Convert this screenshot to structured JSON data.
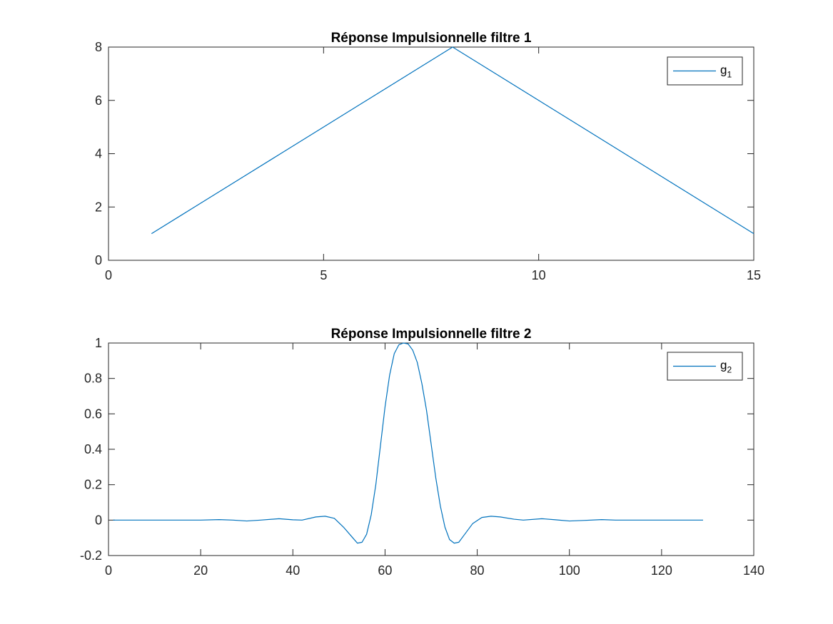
{
  "figure": {
    "background": "#ffffff",
    "line_color": "#0072bd",
    "axis_color": "#262626"
  },
  "chart_data": [
    {
      "type": "line",
      "title": "Réponse Impulsionnelle filtre 1",
      "xlabel": "",
      "ylabel": "",
      "xlim": [
        0,
        15
      ],
      "ylim": [
        0,
        8
      ],
      "xticks": [
        0,
        5,
        10,
        15
      ],
      "yticks": [
        0,
        2,
        4,
        6,
        8
      ],
      "grid": false,
      "legend_position": "top-right",
      "series": [
        {
          "name": "g_1",
          "legend_base": "g",
          "legend_sub": "1",
          "x": [
            1,
            2,
            3,
            4,
            5,
            6,
            7,
            8,
            9,
            10,
            11,
            12,
            13,
            14,
            15
          ],
          "y": [
            1,
            2,
            3,
            4,
            5,
            6,
            7,
            8,
            7,
            6,
            5,
            4,
            3,
            2,
            1
          ]
        }
      ]
    },
    {
      "type": "line",
      "title": "Réponse Impulsionnelle filtre 2",
      "xlabel": "",
      "ylabel": "",
      "xlim": [
        0,
        140
      ],
      "ylim": [
        -0.2,
        1
      ],
      "xticks": [
        0,
        20,
        40,
        60,
        80,
        100,
        120,
        140
      ],
      "yticks": [
        -0.2,
        0,
        0.2,
        0.4,
        0.6,
        0.8,
        1
      ],
      "grid": false,
      "legend_position": "top-right",
      "series": [
        {
          "name": "g_2",
          "legend_base": "g",
          "legend_sub": "2",
          "x": [
            1,
            5,
            10,
            15,
            20,
            24,
            27,
            30,
            33,
            37,
            40,
            42,
            45,
            47,
            49,
            51,
            53,
            54,
            55,
            56,
            57,
            58,
            59,
            60,
            61,
            62,
            63,
            64,
            65,
            66,
            67,
            68,
            69,
            70,
            71,
            72,
            73,
            74,
            75,
            76,
            77,
            79,
            81,
            83,
            85,
            88,
            90,
            94,
            97,
            100,
            103,
            107,
            110,
            115,
            120,
            125,
            129
          ],
          "y": [
            0,
            0,
            0,
            0,
            0,
            0.003,
            0,
            -0.005,
            0,
            0.008,
            0.002,
            0,
            0.018,
            0.022,
            0.01,
            -0.04,
            -0.1,
            -0.13,
            -0.125,
            -0.08,
            0.03,
            0.2,
            0.42,
            0.64,
            0.82,
            0.94,
            0.99,
            1,
            0.995,
            0.96,
            0.89,
            0.77,
            0.62,
            0.43,
            0.24,
            0.08,
            -0.04,
            -0.11,
            -0.13,
            -0.125,
            -0.09,
            -0.02,
            0.015,
            0.022,
            0.018,
            0.005,
            0,
            0.008,
            0.002,
            -0.005,
            -0.002,
            0.003,
            0,
            0,
            0,
            0,
            0
          ]
        }
      ]
    }
  ]
}
